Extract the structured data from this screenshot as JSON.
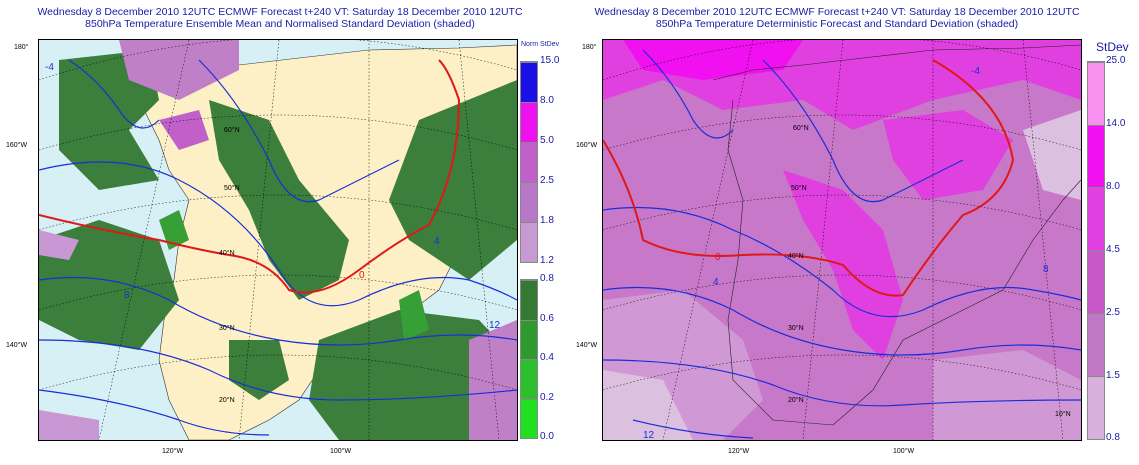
{
  "left_panel": {
    "title_line1": "Wednesday 8 December 2010 12UTC ECMWF Forecast t+240  VT: Saturday 18 December 2010 12UTC",
    "title_line2": "850hPa Temperature Ensemble Mean and Normalised Standard Deviation (shaded)",
    "colorbar_title": "Norm StDev",
    "upper_ticks": [
      "15.0",
      "8.0",
      "5.0",
      "2.5",
      "1.8",
      "1.2"
    ],
    "upper_colors": [
      "#1a10e6",
      "#ee10ee",
      "#c060c8",
      "#b878c8",
      "#c89ad4"
    ],
    "lower_ticks": [
      "0.8",
      "0.6",
      "0.4",
      "0.2",
      "0.0"
    ],
    "lower_colors": [
      "#347a34",
      "#2e9a2e",
      "#2cc02c",
      "#20e020"
    ],
    "lat_labels": [
      "180°",
      "160°W",
      "140°W",
      "20°N",
      "30°N",
      "40°N",
      "50°N",
      "60°N"
    ],
    "lon_labels": [
      "120°W",
      "100°W"
    ],
    "contour_labels": [
      "0",
      "4",
      "8",
      "12",
      "-4"
    ]
  },
  "right_panel": {
    "title_line1": "Wednesday 8 December 2010 12UTC ECMWF Forecast t+240  VT: Saturday 18 December 2010 12UTC",
    "title_line2": "850hPa Temperature Deterministic Forecast and Standard Deviation (shaded)",
    "colorbar_title": "StDev",
    "ticks": [
      "25.0",
      "14.0",
      "8.0",
      "4.5",
      "2.5",
      "1.5",
      "0.8"
    ],
    "colors": [
      "#f890f0",
      "#f010f0",
      "#e040e0",
      "#c858c8",
      "#c078c4",
      "#d098d4",
      "#dcc0e0"
    ],
    "lat_labels": [
      "180°",
      "160°W",
      "140°W",
      "20°N",
      "30°N",
      "40°N",
      "50°N",
      "60°N",
      "10°N"
    ],
    "lon_labels": [
      "120°W",
      "100°W"
    ],
    "contour_labels": [
      "0",
      "4",
      "8",
      "12",
      "-4"
    ]
  }
}
